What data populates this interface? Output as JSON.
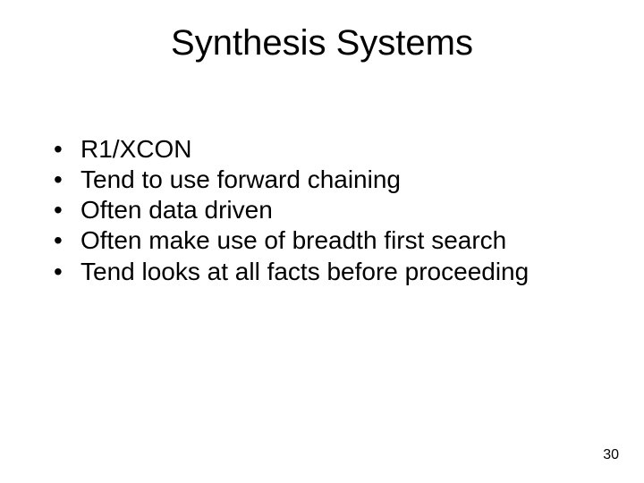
{
  "title": "Synthesis Systems",
  "bullets": [
    "R1/XCON",
    "Tend to use forward chaining",
    "Often data driven",
    "Often make use of breadth first search",
    "Tend looks at all facts before proceeding"
  ],
  "page_number": "30",
  "style": {
    "background_color": "#ffffff",
    "text_color": "#000000",
    "title_fontsize": 40,
    "body_fontsize": 28,
    "pagenum_fontsize": 16,
    "font_family": "Arial"
  }
}
